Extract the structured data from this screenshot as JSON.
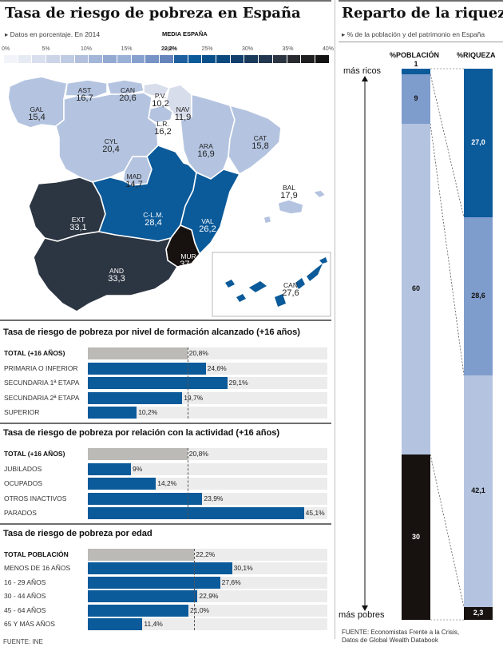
{
  "left_header": {
    "title": "Tasa de riesgo de pobreza en España",
    "subtitle": "Datos en porcentaje. En 2014",
    "media_label": "MEDIA ESPAÑA",
    "media_value": "22,2%"
  },
  "right_header": {
    "title": "Reparto de la riqueza",
    "subtitle": "% de la población y del patrimonio en España"
  },
  "scale": {
    "ticks": [
      "0%",
      "5%",
      "10%",
      "15%",
      "20%",
      "25%",
      "30%",
      "35%",
      "40%"
    ],
    "colors": [
      "#f2f4f9",
      "#e6eaf3",
      "#d9dfee",
      "#ccd5e8",
      "#bfcbe3",
      "#b2c0dd",
      "#a3b5d8",
      "#94a9d2",
      "#9ab0d6",
      "#87a1cf",
      "#7693c6",
      "#6584bc",
      "#1d5f9f",
      "#0b5a9a",
      "#08508b",
      "#0a4a7f",
      "#123f6c",
      "#1a3a5c",
      "#233750",
      "#2b3441",
      "#282a30",
      "#1f1f22",
      "#141414"
    ]
  },
  "colors": {
    "light": "#b4c4e0",
    "mid": "#7f9dcc",
    "blue": "#0b5a9a",
    "dark": "#2c3542",
    "black": "#171210",
    "gray": "#bcbab6"
  },
  "regions": [
    {
      "code": "GAL",
      "value": "15,4"
    },
    {
      "code": "AST",
      "value": "16,7"
    },
    {
      "code": "CAN",
      "value": "20,6"
    },
    {
      "code": "P.V.",
      "value": "10,2"
    },
    {
      "code": "NAV",
      "value": "11,9"
    },
    {
      "code": "L.R.",
      "value": "16,2"
    },
    {
      "code": "CAT",
      "value": "15,8"
    },
    {
      "code": "ARA",
      "value": "16,9"
    },
    {
      "code": "CYL",
      "value": "20,4"
    },
    {
      "code": "MAD",
      "value": "14,7"
    },
    {
      "code": "BAL",
      "value": "17,9"
    },
    {
      "code": "EXT",
      "value": "33,1"
    },
    {
      "code": "C-L.M.",
      "value": "28,4"
    },
    {
      "code": "VAL",
      "value": "26,2"
    },
    {
      "code": "MUR",
      "value": "37,2"
    },
    {
      "code": "AND",
      "value": "33,3"
    },
    {
      "code": "CAN",
      "value": "27,6"
    }
  ],
  "chart_data": [
    {
      "type": "bar",
      "title": "Tasa de riesgo de pobreza por nivel de formación alcanzado (+16 años)",
      "categories": [
        "TOTAL (+16 AÑOS)",
        "PRIMARIA O INFERIOR",
        "SECUNDARIA 1ª ETAPA",
        "SECUNDARIA 2ª ETAPA",
        "SUPERIOR"
      ],
      "values": [
        20.8,
        24.6,
        29.1,
        19.7,
        10.2
      ],
      "labels": [
        "20,8%",
        "24,6%",
        "29,1%",
        "19,7%",
        "10,2%"
      ],
      "xlim": [
        0,
        50
      ]
    },
    {
      "type": "bar",
      "title": "Tasa de riesgo de pobreza por relación con la actividad (+16 años)",
      "categories": [
        "TOTAL (+16 AÑOS)",
        "JUBILADOS",
        "OCUPADOS",
        "OTROS INACTIVOS",
        "PARADOS"
      ],
      "values": [
        20.8,
        9,
        14.2,
        23.9,
        45.1
      ],
      "labels": [
        "20,8%",
        "9%",
        "14,2%",
        "23,9%",
        "45,1%"
      ],
      "xlim": [
        0,
        50
      ]
    },
    {
      "type": "bar",
      "title": "Tasa de riesgo de pobreza por edad",
      "categories": [
        "TOTAL POBLACIÓN",
        "MENOS DE 16 AÑOS",
        "16 - 29 AÑOS",
        "30 - 44 AÑOS",
        "45 - 64 AÑOS",
        "65 Y MÁS AÑOS"
      ],
      "values": [
        22.2,
        30.1,
        27.6,
        22.9,
        21.0,
        11.4
      ],
      "labels": [
        "22,2%",
        "30,1%",
        "27,6%",
        "22,9%",
        "21,0%",
        "11,4%"
      ],
      "xlim": [
        0,
        50
      ]
    },
    {
      "type": "bar",
      "title": "Reparto de la riqueza",
      "stacked": true,
      "columns": [
        "%POBLACIÓN",
        "%RIQUEZA"
      ],
      "groups": [
        "más ricos",
        "",
        "",
        "más pobres"
      ],
      "poblacion": [
        1,
        9,
        60,
        30
      ],
      "poblacion_labels": [
        "1",
        "9",
        "60",
        "30"
      ],
      "riqueza": [
        27.0,
        28.6,
        42.1,
        2.3
      ],
      "riqueza_labels": [
        "27,0",
        "28,6",
        "42,1",
        "2,3"
      ],
      "top_label": "más ricos",
      "bottom_label": "más pobres"
    }
  ],
  "footer_left": "FUENTE: INE",
  "footer_right_1": "FUENTE: Economistas Frente a la Crisis,",
  "footer_right_2": "Datos de Global Wealth Databook"
}
